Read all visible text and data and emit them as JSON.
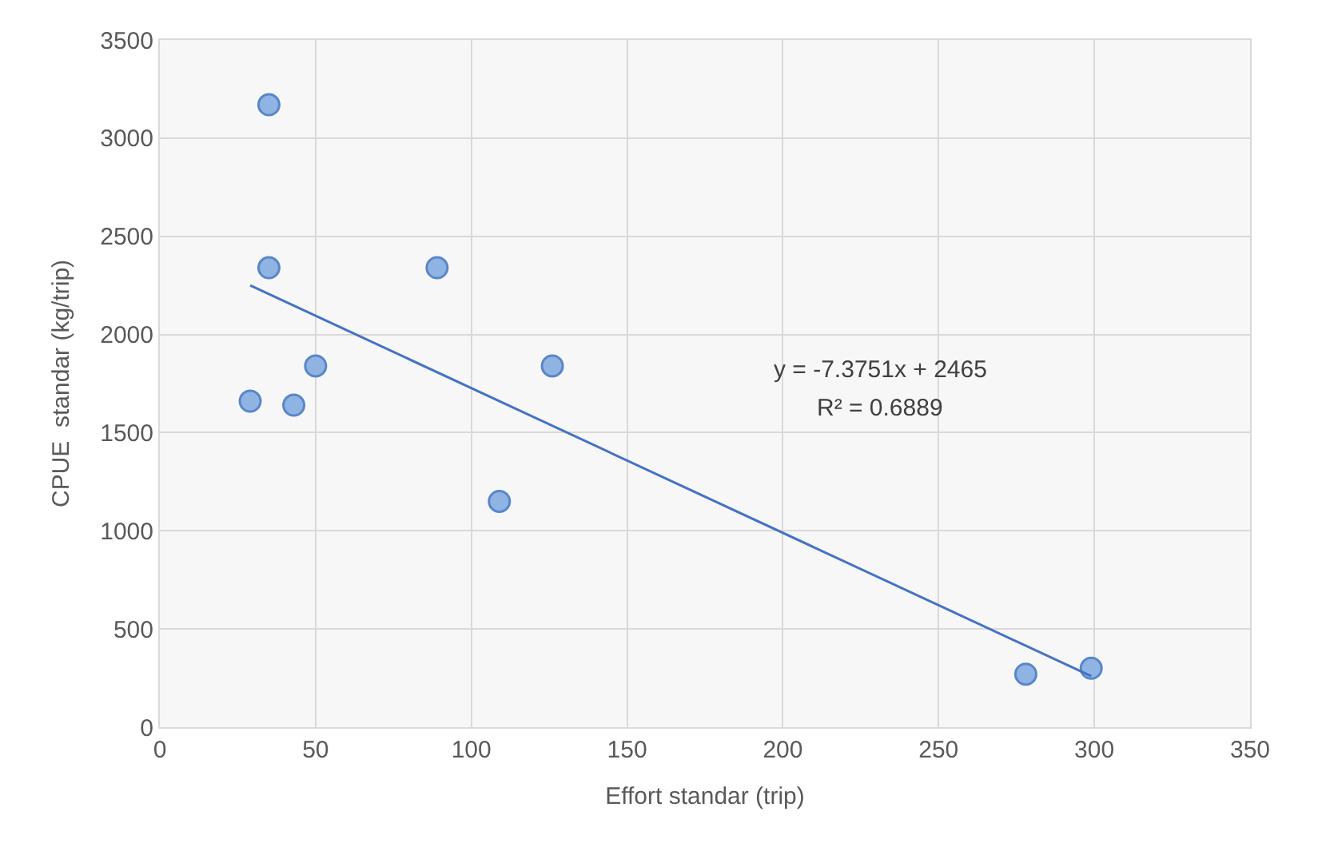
{
  "chart_data": {
    "type": "scatter",
    "xlabel": "Effort standar (trip)",
    "ylabel": "CPUE  standar (kg/trip)",
    "xlim": [
      0,
      350
    ],
    "xticks": [
      0,
      50,
      100,
      150,
      200,
      250,
      300,
      350
    ],
    "ylim": [
      0,
      3500
    ],
    "yticks": [
      0,
      500,
      1000,
      1500,
      2000,
      2500,
      3000,
      3500
    ],
    "grid": true,
    "marker": "circle",
    "series": [
      {
        "color": "#8fb4e3",
        "x": [
          35,
          35,
          89,
          50,
          29,
          43,
          126,
          109,
          278,
          299
        ],
        "values": [
          3170,
          2340,
          2340,
          1840,
          1660,
          1640,
          1840,
          1150,
          270,
          300
        ]
      },
      {
        "type": "line",
        "color": "#4472c4",
        "marker": "none",
        "x": [
          29,
          299
        ],
        "values": [
          2250,
          260
        ]
      }
    ],
    "annotations": [
      "y = -7.3751x + 2465",
      "R² = 0.6889"
    ]
  }
}
